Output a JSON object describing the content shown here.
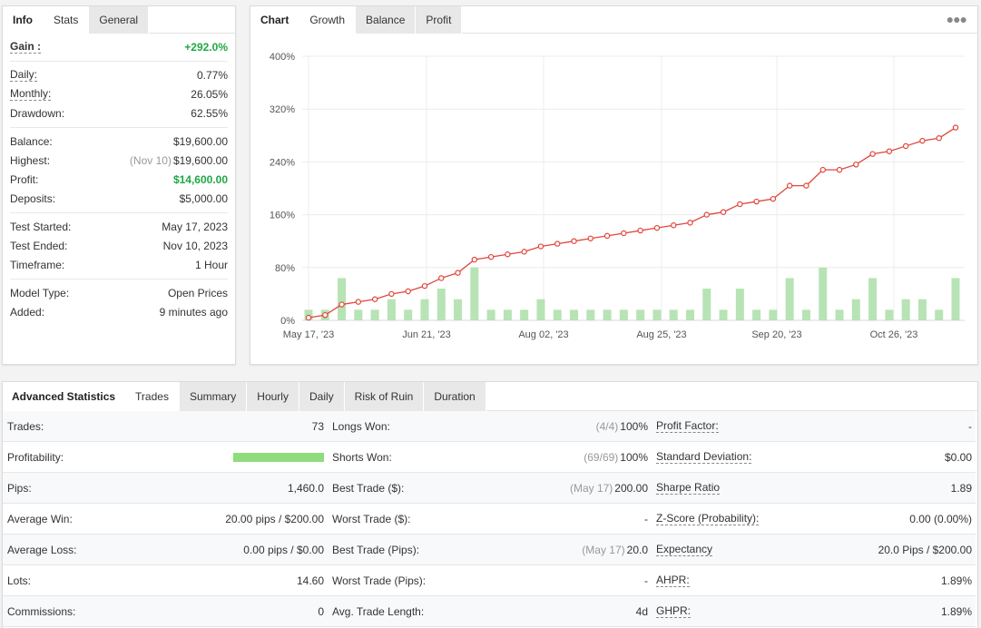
{
  "info_panel": {
    "tabs": [
      {
        "label": "Info"
      },
      {
        "label": "Stats"
      },
      {
        "label": "General"
      }
    ],
    "gain": {
      "label": "Gain :",
      "value": "+292.0%"
    },
    "daily": {
      "label": "Daily:",
      "value": "0.77%"
    },
    "monthly": {
      "label": "Monthly:",
      "value": "26.05%"
    },
    "drawdown": {
      "label": "Drawdown:",
      "value": "62.55%"
    },
    "balance": {
      "label": "Balance:",
      "value": "$19,600.00"
    },
    "highest": {
      "label": "Highest:",
      "note": "(Nov 10)",
      "value": "$19,600.00"
    },
    "profit": {
      "label": "Profit:",
      "value": "$14,600.00"
    },
    "deposits": {
      "label": "Deposits:",
      "value": "$5,000.00"
    },
    "test_started": {
      "label": "Test Started:",
      "value": "May 17, 2023"
    },
    "test_ended": {
      "label": "Test Ended:",
      "value": "Nov 10, 2023"
    },
    "timeframe": {
      "label": "Timeframe:",
      "value": "1 Hour"
    },
    "model_type": {
      "label": "Model Type:",
      "value": "Open Prices"
    },
    "added": {
      "label": "Added:",
      "value": "9 minutes ago"
    }
  },
  "chart_panel": {
    "tabs": [
      {
        "label": "Chart"
      },
      {
        "label": "Growth"
      },
      {
        "label": "Balance"
      },
      {
        "label": "Profit"
      }
    ],
    "more_icon": "ellipsis-icon"
  },
  "chart_data": {
    "type": "line",
    "title": "",
    "xlabel": "",
    "ylabel": "",
    "y_ticks": [
      "0%",
      "80%",
      "160%",
      "240%",
      "320%",
      "400%"
    ],
    "ylim": [
      0,
      400
    ],
    "x_ticks": [
      "May 17, '23",
      "Jun 21, '23",
      "Aug 02, '23",
      "Aug 25, '23",
      "Sep 20, '23",
      "Oct 26, '23"
    ],
    "grid": true,
    "colors": {
      "line": "#e0463c",
      "bars": "#b7e3b5"
    },
    "series": [
      {
        "type": "line",
        "values": [
          4,
          8,
          24,
          28,
          32,
          40,
          44,
          52,
          64,
          72,
          92,
          96,
          100,
          104,
          112,
          116,
          120,
          124,
          128,
          132,
          136,
          140,
          144,
          148,
          160,
          164,
          176,
          180,
          184,
          204,
          204,
          228,
          228,
          236,
          252,
          256,
          264,
          272,
          276,
          292
        ]
      },
      {
        "type": "bar",
        "values": [
          16,
          16,
          64,
          16,
          16,
          32,
          16,
          32,
          48,
          32,
          80,
          16,
          16,
          16,
          32,
          16,
          16,
          16,
          16,
          16,
          16,
          16,
          16,
          16,
          48,
          16,
          48,
          16,
          16,
          64,
          16,
          80,
          16,
          32,
          64,
          16,
          32,
          32,
          16,
          64
        ]
      }
    ]
  },
  "advanced": {
    "tabs": [
      {
        "label": "Advanced Statistics"
      },
      {
        "label": "Trades"
      },
      {
        "label": "Summary"
      },
      {
        "label": "Hourly"
      },
      {
        "label": "Daily"
      },
      {
        "label": "Risk of Ruin"
      },
      {
        "label": "Duration"
      }
    ],
    "col1": [
      {
        "label": "Trades:",
        "value": "73"
      },
      {
        "label": "Profitability:",
        "value": "",
        "bar_fraction": 1.0
      },
      {
        "label": "Pips:",
        "value": "1,460.0"
      },
      {
        "label": "Average Win:",
        "value": "20.00 pips / $200.00"
      },
      {
        "label": "Average Loss:",
        "value": "0.00 pips / $0.00"
      },
      {
        "label": "Lots:",
        "value": "14.60"
      },
      {
        "label": "Commissions:",
        "value": "0"
      }
    ],
    "col2": [
      {
        "label": "Longs Won:",
        "note": "(4/4)",
        "value": "100%"
      },
      {
        "label": "Shorts Won:",
        "note": "(69/69)",
        "value": "100%"
      },
      {
        "label": "Best Trade ($):",
        "note": "(May 17)",
        "value": "200.00"
      },
      {
        "label": "Worst Trade ($):",
        "note": "",
        "value": "-"
      },
      {
        "label": "Best Trade (Pips):",
        "note": "(May 17)",
        "value": "20.0"
      },
      {
        "label": "Worst Trade (Pips):",
        "note": "",
        "value": "-"
      },
      {
        "label": "Avg. Trade Length:",
        "note": "",
        "value": "4d"
      }
    ],
    "col3": [
      {
        "label": "Profit Factor:",
        "value": "-"
      },
      {
        "label": "Standard Deviation:",
        "value": "$0.00"
      },
      {
        "label": "Sharpe Ratio",
        "value": "1.89"
      },
      {
        "label": "Z-Score (Probability):",
        "value": "0.00 (0.00%)"
      },
      {
        "label": "Expectancy",
        "value": "20.0 Pips / $200.00"
      },
      {
        "label": "AHPR:",
        "value": "1.89%"
      },
      {
        "label": "GHPR:",
        "value": "1.89%"
      }
    ]
  }
}
